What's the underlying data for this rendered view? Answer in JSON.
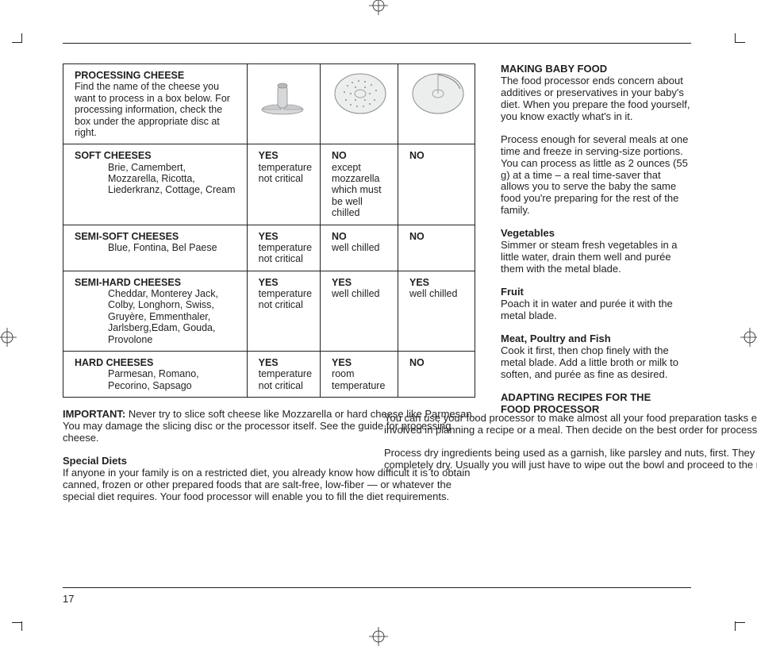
{
  "table": {
    "header": {
      "title": "PROCESSING CHEESE",
      "desc": "Find the name of the cheese you want to process in a box below. For processing information, check the box under the appropriate disc at right."
    },
    "rows": [
      {
        "title": "SOFT CHEESES",
        "list": "Brie, Camembert, Mozzarella, Ricotta, Liederkranz, Cottage, Cream",
        "c1_yn": "YES",
        "c1_note": "temperature not critical",
        "c2_yn": "NO",
        "c2_note": "except mozzarella which must be well chilled",
        "c3_yn": "NO",
        "c3_note": ""
      },
      {
        "title": "SEMI-SOFT CHEESES",
        "list": "Blue, Fontina, Bel Paese",
        "c1_yn": "YES",
        "c1_note": "temperature not critical",
        "c2_yn": "NO",
        "c2_note": "well chilled",
        "c3_yn": "NO",
        "c3_note": ""
      },
      {
        "title": "SEMI-HARD CHEESES",
        "list": "Cheddar, Monterey Jack, Colby, Longhorn, Swiss, Gruyère, Emmenthaler, Jarlsberg,Edam, Gouda, Provolone",
        "c1_yn": "YES",
        "c1_note": "temperature not critical",
        "c2_yn": "YES",
        "c2_note": "well chilled",
        "c3_yn": "YES",
        "c3_note": "well chilled"
      },
      {
        "title": "HARD CHEESES",
        "list": "Parmesan, Romano, Pecorino, Sapsago",
        "c1_yn": "YES",
        "c1_note": "temperature not critical",
        "c2_yn": "YES",
        "c2_note": "room temperature",
        "c3_yn": "NO",
        "c3_note": ""
      }
    ]
  },
  "left": {
    "important_label": "IMPORTANT:",
    "important_text": " Never try to slice soft cheese like Mozzarella or hard cheese like Parmesan. You may damage the slicing disc or the processor itself. See the guide for processing cheese.",
    "special_h": "Special Diets",
    "special_text": "If anyone in your family is on a restricted diet, you already know how difficult it is to obtain canned, frozen or other prepared foods that are salt-free, low-fiber — or whatever the special diet requires. Your food processor will enable you to fill the diet requirements."
  },
  "right": {
    "h1": "MAKING BABY FOOD",
    "p1": "The food processor ends concern about additives or preservatives in your baby's diet. When you prepare the food yourself, you know exactly what's in it.",
    "p2": "Process enough for several meals at one time and freeze in serving-size portions. You can process as little as 2 ounces (55 g) at a time – a real time-saver that allows you to serve the baby the same food you're preparing for the rest of the family.",
    "veg_h": "Vegetables",
    "veg_t": "Simmer or steam fresh vegetables in a little water, drain them well and purée them with the metal blade.",
    "fruit_h": "Fruit",
    "fruit_t": "Poach it in water and purée it with the metal blade.",
    "meat_h": "Meat, Poultry and Fish",
    "meat_t": "Cook it first, then chop finely with the metal blade. Add a little broth or milk to soften, and purée as fine as desired.",
    "h2a": "ADAPTING RECIPES FOR THE",
    "h2b": "FOOD PROCESSOR",
    "p3": "You can use your food processor to make almost all your food preparation tasks easier. To work most efficiently, organize all the steps involved in planning a recipe or a meal. Then decide on the best order for processing materials, using the information below as a guide.",
    "p4": "Process dry ingredients being used as a garnish, like parsley and nuts, first. They should be chopped when the bowl and the blade are completely dry. Usually you will just have to wipe out the bowl and proceed to the next processing task without washing it."
  },
  "page_number": "17",
  "colors": {
    "text": "#231f20",
    "grey": "#b8b9bb",
    "grey_dark": "#8d8e90"
  }
}
